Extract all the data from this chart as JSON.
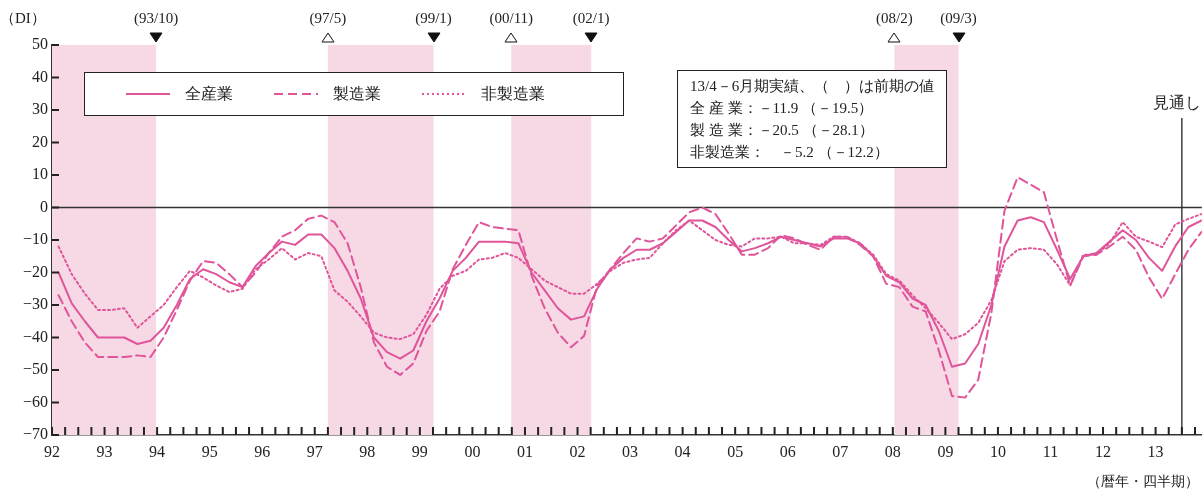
{
  "chart_data": {
    "type": "line",
    "ylabel": "（DI）",
    "xlabel": "（暦年・四半期）",
    "x": [
      1992.125,
      1992.375,
      1992.625,
      1992.875,
      1993.125,
      1993.375,
      1993.625,
      1993.875,
      1994.125,
      1994.375,
      1994.625,
      1994.875,
      1995.125,
      1995.375,
      1995.625,
      1995.875,
      1996.125,
      1996.375,
      1996.625,
      1996.875,
      1997.125,
      1997.375,
      1997.625,
      1997.875,
      1998.125,
      1998.375,
      1998.625,
      1998.875,
      1999.125,
      1999.375,
      1999.625,
      1999.875,
      2000.125,
      2000.375,
      2000.625,
      2000.875,
      2001.125,
      2001.375,
      2001.625,
      2001.875,
      2002.125,
      2002.375,
      2002.625,
      2002.875,
      2003.125,
      2003.375,
      2003.625,
      2003.875,
      2004.125,
      2004.375,
      2004.625,
      2004.875,
      2005.125,
      2005.375,
      2005.625,
      2005.875,
      2006.125,
      2006.375,
      2006.625,
      2006.875,
      2007.125,
      2007.375,
      2007.625,
      2007.875,
      2008.125,
      2008.375,
      2008.625,
      2008.875,
      2009.125,
      2009.375,
      2009.625,
      2009.875,
      2010.125,
      2010.375,
      2010.625,
      2010.875,
      2011.125,
      2011.375,
      2011.625,
      2011.875,
      2012.125,
      2012.375,
      2012.625,
      2012.875,
      2013.125,
      2013.375,
      2013.625,
      2013.875
    ],
    "series": [
      {
        "name": "全産業",
        "color": "#e0559a",
        "line_style": "solid",
        "values": [
          -20,
          -29.5,
          -35,
          -40,
          -40,
          -40,
          -42,
          -41,
          -37,
          -30,
          -22,
          -19,
          -20.5,
          -23,
          -24.5,
          -18,
          -14,
          -10.5,
          -11.5,
          -8.3,
          -8.3,
          -12.5,
          -19.5,
          -28,
          -40,
          -44.5,
          -46.5,
          -44,
          -35,
          -28,
          -19.5,
          -15.5,
          -10.5,
          -10.5,
          -10.5,
          -11,
          -20,
          -25.5,
          -31,
          -34.5,
          -33.5,
          -25,
          -19,
          -15.5,
          -13,
          -13,
          -11,
          -7.5,
          -4,
          -4,
          -6,
          -10,
          -13.5,
          -12.5,
          -11,
          -9,
          -10,
          -11,
          -12,
          -9.5,
          -9.5,
          -11,
          -15,
          -21,
          -23,
          -28,
          -30,
          -38,
          -49,
          -48,
          -42,
          -30,
          -12,
          -4,
          -3,
          -4.5,
          -13,
          -22,
          -15,
          -14,
          -10.5,
          -7,
          -10,
          -15.5,
          -19.5,
          -11.9,
          -6,
          -4
        ]
      },
      {
        "name": "製造業",
        "color": "#e0559a",
        "line_style": "dashed",
        "values": [
          -27,
          -35,
          -41.5,
          -46,
          -46,
          -46,
          -45.5,
          -46,
          -40,
          -31.5,
          -22.5,
          -16.5,
          -17,
          -20.5,
          -24.5,
          -20,
          -14,
          -9,
          -7,
          -3.5,
          -2.5,
          -4.5,
          -11,
          -24.5,
          -41.5,
          -49,
          -51.5,
          -48,
          -38,
          -32,
          -19,
          -11.5,
          -4.5,
          -6,
          -6.5,
          -7,
          -21,
          -31,
          -38.5,
          -43,
          -39.5,
          -24,
          -19,
          -14,
          -9.5,
          -10.5,
          -9.5,
          -5.5,
          -1.5,
          0,
          -2,
          -8,
          -14.5,
          -14.5,
          -12.5,
          -8.5,
          -9.5,
          -11.5,
          -13,
          -9,
          -9,
          -11.5,
          -15,
          -23.5,
          -24.5,
          -30.5,
          -32,
          -44,
          -58,
          -58.5,
          -53,
          -32.5,
          -1,
          9.3,
          7,
          4.7,
          -10,
          -24,
          -15,
          -14.5,
          -12,
          -9,
          -13,
          -21.5,
          -28.1,
          -20.5,
          -13,
          -7.5
        ]
      },
      {
        "name": "非製造業",
        "color": "#e0559a",
        "line_style": "dotted",
        "values": [
          -12,
          -20.5,
          -26.5,
          -31.5,
          -31.5,
          -31,
          -37,
          -33.5,
          -30,
          -24.5,
          -19.5,
          -21.5,
          -24,
          -26,
          -25,
          -19,
          -16,
          -12.5,
          -16,
          -14,
          -15,
          -25.5,
          -29,
          -33.5,
          -38.5,
          -40,
          -40.5,
          -39,
          -33,
          -25,
          -21,
          -19.5,
          -16,
          -15.5,
          -14,
          -15.5,
          -19,
          -22.5,
          -24.5,
          -26.5,
          -26.5,
          -23.5,
          -19.5,
          -17,
          -16,
          -15.5,
          -11,
          -7,
          -4,
          -7,
          -10,
          -11.5,
          -12,
          -9.5,
          -9.5,
          -9,
          -11,
          -11,
          -11.5,
          -9,
          -9,
          -11,
          -14.5,
          -20.5,
          -22.5,
          -27,
          -31,
          -35.5,
          -40.5,
          -39,
          -35.5,
          -28.5,
          -16.5,
          -13,
          -12.5,
          -13,
          -17.5,
          -24,
          -14.5,
          -14.5,
          -11,
          -4.5,
          -9,
          -10.5,
          -12.2,
          -5.2,
          -3.5,
          -2
        ]
      }
    ],
    "marker": "none",
    "legend": "top left",
    "xlim": [
      1992,
      2013.88
    ],
    "xticks": [
      {
        "value": 1992,
        "label": "92"
      },
      {
        "value": 1993,
        "label": "93"
      },
      {
        "value": 1994,
        "label": "94"
      },
      {
        "value": 1995,
        "label": "95"
      },
      {
        "value": 1996,
        "label": "96"
      },
      {
        "value": 1997,
        "label": "97"
      },
      {
        "value": 1998,
        "label": "98"
      },
      {
        "value": 1999,
        "label": "99"
      },
      {
        "value": 2000,
        "label": "00"
      },
      {
        "value": 2001,
        "label": "01"
      },
      {
        "value": 2002,
        "label": "02"
      },
      {
        "value": 2003,
        "label": "03"
      },
      {
        "value": 2004,
        "label": "04"
      },
      {
        "value": 2005,
        "label": "05"
      },
      {
        "value": 2006,
        "label": "06"
      },
      {
        "value": 2007,
        "label": "07"
      },
      {
        "value": 2008,
        "label": "08"
      },
      {
        "value": 2009,
        "label": "09"
      },
      {
        "value": 2010,
        "label": "10"
      },
      {
        "value": 2011,
        "label": "11"
      },
      {
        "value": 2012,
        "label": "12"
      },
      {
        "value": 2013,
        "label": "13"
      },
      {
        "value": 1992.25,
        "label": null
      },
      {
        "value": 1992.5,
        "label": null
      },
      {
        "value": 1992.75,
        "label": null
      },
      {
        "value": 1993.25,
        "label": null
      },
      {
        "value": 1993.5,
        "label": null
      },
      {
        "value": 1993.75,
        "label": null
      },
      {
        "value": 1994.25,
        "label": null
      },
      {
        "value": 1994.5,
        "label": null
      },
      {
        "value": 1994.75,
        "label": null
      },
      {
        "value": 1995.25,
        "label": null
      },
      {
        "value": 1995.5,
        "label": null
      },
      {
        "value": 1995.75,
        "label": null
      },
      {
        "value": 1996.25,
        "label": null
      },
      {
        "value": 1996.5,
        "label": null
      },
      {
        "value": 1996.75,
        "label": null
      },
      {
        "value": 1997.25,
        "label": null
      },
      {
        "value": 1997.5,
        "label": null
      },
      {
        "value": 1997.75,
        "label": null
      },
      {
        "value": 1998.25,
        "label": null
      },
      {
        "value": 1998.5,
        "label": null
      },
      {
        "value": 1998.75,
        "label": null
      },
      {
        "value": 1999.25,
        "label": null
      },
      {
        "value": 1999.5,
        "label": null
      },
      {
        "value": 1999.75,
        "label": null
      },
      {
        "value": 2000.25,
        "label": null
      },
      {
        "value": 2000.5,
        "label": null
      },
      {
        "value": 2000.75,
        "label": null
      },
      {
        "value": 2001.25,
        "label": null
      },
      {
        "value": 2001.5,
        "label": null
      },
      {
        "value": 2001.75,
        "label": null
      },
      {
        "value": 2002.25,
        "label": null
      },
      {
        "value": 2002.5,
        "label": null
      },
      {
        "value": 2002.75,
        "label": null
      },
      {
        "value": 2003.25,
        "label": null
      },
      {
        "value": 2003.5,
        "label": null
      },
      {
        "value": 2003.75,
        "label": null
      },
      {
        "value": 2004.25,
        "label": null
      },
      {
        "value": 2004.5,
        "label": null
      },
      {
        "value": 2004.75,
        "label": null
      },
      {
        "value": 2005.25,
        "label": null
      },
      {
        "value": 2005.5,
        "label": null
      },
      {
        "value": 2005.75,
        "label": null
      },
      {
        "value": 2006.25,
        "label": null
      },
      {
        "value": 2006.5,
        "label": null
      },
      {
        "value": 2006.75,
        "label": null
      },
      {
        "value": 2007.25,
        "label": null
      },
      {
        "value": 2007.5,
        "label": null
      },
      {
        "value": 2007.75,
        "label": null
      },
      {
        "value": 2008.25,
        "label": null
      },
      {
        "value": 2008.5,
        "label": null
      },
      {
        "value": 2008.75,
        "label": null
      },
      {
        "value": 2009.25,
        "label": null
      },
      {
        "value": 2009.5,
        "label": null
      },
      {
        "value": 2009.75,
        "label": null
      },
      {
        "value": 2010.25,
        "label": null
      },
      {
        "value": 2010.5,
        "label": null
      },
      {
        "value": 2010.75,
        "label": null
      },
      {
        "value": 2011.25,
        "label": null
      },
      {
        "value": 2011.5,
        "label": null
      },
      {
        "value": 2011.75,
        "label": null
      },
      {
        "value": 2012.25,
        "label": null
      },
      {
        "value": 2012.5,
        "label": null
      },
      {
        "value": 2012.75,
        "label": null
      },
      {
        "value": 2013.25,
        "label": null
      },
      {
        "value": 2013.5,
        "label": null
      },
      {
        "value": 2013.75,
        "label": null
      }
    ],
    "ylim": [
      -70,
      50
    ],
    "yticks": [
      -70,
      -60,
      -50,
      -40,
      -30,
      -20,
      -10,
      0,
      10,
      20,
      30,
      40,
      50
    ],
    "bands": [
      {
        "axis": "x",
        "from": 1992,
        "to": 1993.98,
        "color": "#f7d9e6"
      },
      {
        "axis": "x",
        "from": 1997.25,
        "to": 1999.26,
        "color": "#f7d9e6"
      },
      {
        "axis": "x",
        "from": 2000.74,
        "to": 2002.26,
        "color": "#f7d9e6"
      },
      {
        "axis": "x",
        "from": 2008.03,
        "to": 2009.25,
        "color": "#f7d9e6"
      }
    ],
    "ref_lines": [
      {
        "axis": "y",
        "value": 0,
        "color": "#333333"
      },
      {
        "axis": "x",
        "value": 2013.5,
        "label": "見通し",
        "color": "#222222"
      }
    ],
    "annotations": [
      "(93/10)",
      "(97/5)",
      "(99/1)",
      "(00/11)",
      "(02/1)",
      "(08/2)",
      "(09/3)",
      "13/4－6月期実績、（　）は前期の値",
      "全 産 業：－11.9 （－19.5）",
      "製 造 業：－20.5 （－28.1）",
      "非製造業：　－5.2 （－12.2）"
    ]
  }
}
